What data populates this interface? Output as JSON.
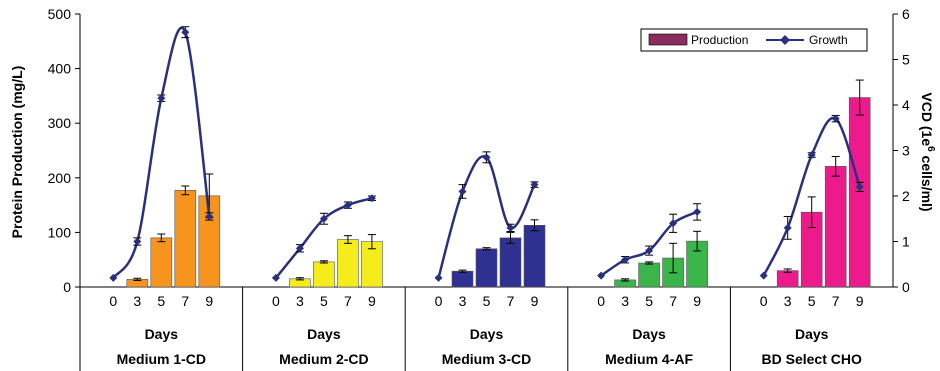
{
  "colors": {
    "growth_line": "#2a3080",
    "axis": "#000000"
  },
  "chart_data": {
    "type": "bar",
    "ylabel": "Protein Production (mg/L)",
    "y2label_main": "VCD (1e",
    "y2label_sup": "6",
    "y2label_tail": " cells/ml)",
    "xlabel": "Days",
    "ylim": [
      0,
      500
    ],
    "yticks": [
      "0",
      "100",
      "200",
      "300",
      "400",
      "500"
    ],
    "y2lim": [
      0,
      6
    ],
    "y2ticks": [
      "0",
      "1",
      "2",
      "3",
      "4",
      "5",
      "6"
    ],
    "legend": {
      "position": "top-right",
      "production": "Production",
      "growth": "Growth",
      "production_color": "#8b2e5f"
    },
    "groups": [
      {
        "name": "Medium 1-CD",
        "color": "#f7941d",
        "days": [
          "0",
          "3",
          "5",
          "7",
          "9"
        ],
        "production": [
          null,
          14,
          90,
          177,
          167
        ],
        "production_err": [
          0,
          2,
          7,
          8,
          40
        ],
        "growth": [
          0.2,
          1.0,
          4.15,
          5.6,
          1.55
        ],
        "growth_err": [
          0,
          0.08,
          0.07,
          0.12,
          0.08
        ]
      },
      {
        "name": "Medium 2-CD",
        "color": "#f5ec1c",
        "days": [
          "0",
          "3",
          "5",
          "7",
          "9"
        ],
        "production": [
          null,
          15,
          46,
          87,
          83
        ],
        "production_err": [
          0,
          2,
          2,
          7,
          13
        ],
        "growth": [
          0.2,
          0.85,
          1.5,
          1.8,
          1.95
        ],
        "growth_err": [
          0,
          0.08,
          0.12,
          0.07,
          0.05
        ]
      },
      {
        "name": "Medium 3-CD",
        "color": "#2e3192",
        "days": [
          "0",
          "3",
          "5",
          "7",
          "9"
        ],
        "production": [
          null,
          29,
          70,
          90,
          113
        ],
        "production_err": [
          0,
          2,
          2,
          10,
          10
        ],
        "growth": [
          0.2,
          2.1,
          2.85,
          1.3,
          2.25
        ],
        "growth_err": [
          0,
          0.15,
          0.12,
          0.08,
          0.06
        ]
      },
      {
        "name": "Medium 4-AF",
        "color": "#39b54a",
        "days": [
          "0",
          "3",
          "5",
          "7",
          "9"
        ],
        "production": [
          null,
          13,
          44,
          53,
          84
        ],
        "production_err": [
          0,
          2,
          2,
          27,
          18
        ],
        "growth": [
          0.25,
          0.6,
          0.8,
          1.4,
          1.65
        ],
        "growth_err": [
          0,
          0.07,
          0.1,
          0.2,
          0.18
        ]
      },
      {
        "name": "BD Select CHO",
        "color": "#ec1a8c",
        "days": [
          "0",
          "3",
          "5",
          "7",
          "9"
        ],
        "production": [
          null,
          30,
          137,
          221,
          347
        ],
        "production_err": [
          0,
          3,
          28,
          18,
          32
        ],
        "growth": [
          0.25,
          1.3,
          2.9,
          3.7,
          2.2
        ],
        "growth_err": [
          0,
          0.25,
          0.05,
          0.07,
          0.1
        ]
      }
    ]
  }
}
